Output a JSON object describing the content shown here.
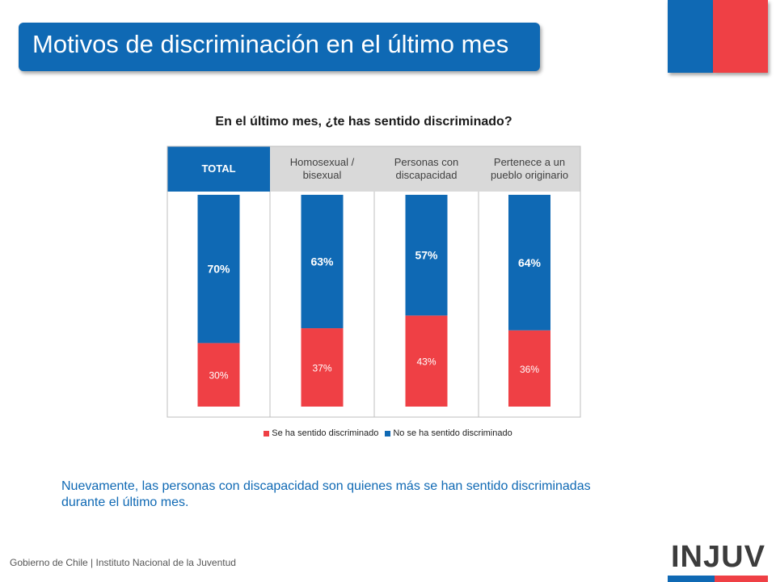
{
  "header": {
    "title": "Motivos de discriminación en el último mes"
  },
  "chart_data": {
    "type": "bar",
    "stacked": true,
    "title": "En el último mes, ¿te has sentido discriminado?",
    "categories": [
      "TOTAL",
      "Homosexual / bisexual",
      "Personas con discapacidad",
      "Pertenece a un pueblo originario"
    ],
    "series": [
      {
        "name": "Se ha sentido discriminado",
        "values": [
          30,
          37,
          43,
          36
        ],
        "labels": [
          "30%",
          "37%",
          "43%",
          "36%"
        ],
        "color": "#ef4045"
      },
      {
        "name": "No se ha sentido discriminado",
        "values": [
          70,
          63,
          57,
          64
        ],
        "labels": [
          "70%",
          "63%",
          "57%",
          "64%"
        ],
        "color": "#0f69b4"
      }
    ],
    "ylim": [
      0,
      100
    ],
    "legend": "bottom",
    "highlighted_category": "TOTAL"
  },
  "summary": "Nuevamente, las personas con discapacidad son quienes más se han sentido discriminadas durante el último mes.",
  "footer": {
    "text": "Gobierno de Chile | Instituto Nacional de la Juventud"
  },
  "logo": {
    "text": "INJUV"
  },
  "colors": {
    "brand_blue": "#0f69b4",
    "brand_red": "#ef4045",
    "header_gray": "#d9d9d9"
  }
}
